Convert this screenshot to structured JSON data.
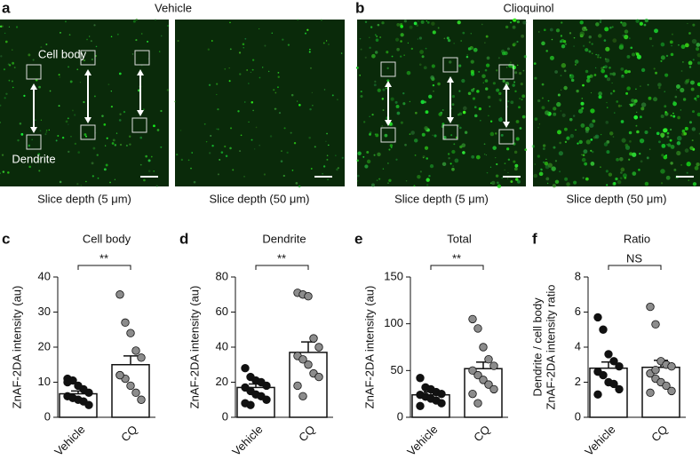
{
  "images": {
    "a": {
      "panel": "a",
      "title": "Vehicle",
      "captions": [
        "Slice depth (5 μm)",
        "Slice depth (50 μm)"
      ],
      "labels": [
        "Cell body",
        "Dendrite"
      ]
    },
    "b": {
      "panel": "b",
      "title": "Clioquinol",
      "captions": [
        "Slice depth (5 μm)",
        "Slice depth (50 μm)"
      ]
    }
  },
  "chart_data": [
    {
      "type": "bar",
      "panel": "c",
      "title": "Cell body",
      "ylabel": "ZnAF-2DA intensity (au)",
      "categories": [
        "Vehicle",
        "CQ"
      ],
      "values": [
        6.7,
        15
      ],
      "errors": [
        0.8,
        2.5
      ],
      "points": [
        [
          11,
          10.5,
          9,
          8,
          7,
          6,
          5.5,
          5,
          4.5,
          3.5,
          10
        ],
        [
          35,
          27,
          24,
          19,
          17,
          12,
          11,
          9,
          7,
          5,
          12
        ]
      ],
      "point_colors": [
        "#111111",
        "#8c8c8c"
      ],
      "annotation": "**",
      "ylim": [
        0,
        40
      ],
      "yticks": [
        0,
        10,
        20,
        30,
        40
      ]
    },
    {
      "type": "bar",
      "panel": "d",
      "title": "Dendrite",
      "ylabel": "ZnAF-2DA intensity (au)",
      "categories": [
        "Vehicle",
        "CQ"
      ],
      "values": [
        17,
        37
      ],
      "errors": [
        2,
        6
      ],
      "points": [
        [
          28,
          23,
          21,
          20,
          18,
          17,
          15,
          13,
          12,
          10,
          8,
          7
        ],
        [
          71,
          70,
          69,
          45,
          40,
          35,
          33,
          30,
          25,
          23,
          18,
          12
        ]
      ],
      "point_colors": [
        "#111111",
        "#8c8c8c"
      ],
      "annotation": "**",
      "ylim": [
        0,
        80
      ],
      "yticks": [
        0,
        20,
        40,
        60,
        80
      ]
    },
    {
      "type": "bar",
      "panel": "e",
      "title": "Total",
      "ylabel": "ZnAF-2DA intensity (au)",
      "categories": [
        "Vehicle",
        "CQ"
      ],
      "values": [
        24,
        52
      ],
      "errors": [
        3,
        7
      ],
      "points": [
        [
          42,
          32,
          30,
          27,
          25,
          24,
          22,
          20,
          18,
          15,
          12
        ],
        [
          105,
          95,
          75,
          62,
          55,
          50,
          45,
          40,
          35,
          30,
          25,
          15
        ]
      ],
      "point_colors": [
        "#111111",
        "#8c8c8c"
      ],
      "annotation": "**",
      "ylim": [
        0,
        150
      ],
      "yticks": [
        0,
        50,
        100,
        150
      ]
    },
    {
      "type": "bar",
      "panel": "f",
      "title": "Ratio",
      "ylabel": [
        "Dendrite / cell body",
        "ZnAF-2DA intensity ratio"
      ],
      "categories": [
        "Vehicle",
        "CQ"
      ],
      "values": [
        2.8,
        2.85
      ],
      "errors": [
        0.35,
        0.4
      ],
      "points": [
        [
          5.7,
          5,
          3.6,
          3.2,
          2.9,
          2.6,
          2.4,
          2,
          1.9,
          1.6,
          1.3
        ],
        [
          6.3,
          5.3,
          3.2,
          3,
          2.9,
          2.5,
          2.2,
          2,
          1.8,
          1.5,
          1.4,
          2.7
        ]
      ],
      "point_colors": [
        "#111111",
        "#8c8c8c"
      ],
      "annotation": "NS",
      "ylim": [
        0,
        8
      ],
      "yticks": [
        0,
        2,
        4,
        6,
        8
      ]
    }
  ]
}
